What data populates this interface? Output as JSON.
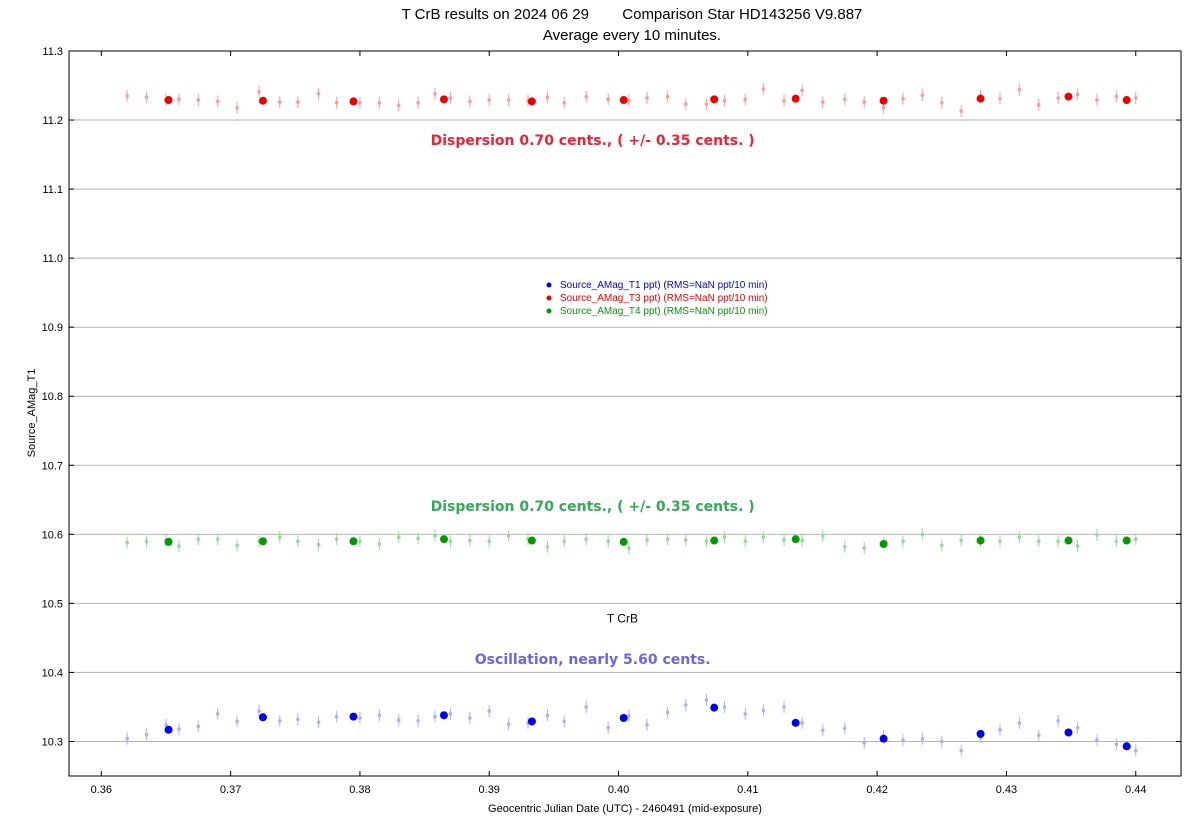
{
  "chart_data": {
    "type": "scatter",
    "title": "T CrB results on 2024 06 29        Comparison Star HD143256 V9.887",
    "subtitle": "Average every 10 minutes.",
    "xlabel": "Geocentric Julian Date (UTC) - 2460491 (mid-exposure)",
    "ylabel": "Source_AMag_T1",
    "xlim": [
      0.3575,
      0.4435
    ],
    "ylim": [
      10.25,
      11.3
    ],
    "xticks": [
      0.36,
      0.37,
      0.38,
      0.39,
      0.4,
      0.41,
      0.42,
      0.43,
      0.44
    ],
    "xtick_labels": [
      "0.36",
      "0.37",
      "0.38",
      "0.39",
      "0.40",
      "0.41",
      "0.42",
      "0.43",
      "0.44"
    ],
    "yticks": [
      10.3,
      10.4,
      10.5,
      10.6,
      10.7,
      10.8,
      10.9,
      11.0,
      11.1,
      11.2,
      11.3
    ],
    "ytick_labels": [
      "10.3",
      "10.4",
      "10.5",
      "10.6",
      "10.7",
      "10.8",
      "10.9",
      "11.0",
      "11.1",
      "11.2",
      "11.3"
    ],
    "grid": "horizontal",
    "legend_position": "center",
    "series": [
      {
        "name": "Source_AMag_T1 ppt) (RMS=NaN ppt/10 min)",
        "color": "#0000ee",
        "raw_color": "#aab0ff",
        "averages": {
          "x": [
            0.3652,
            0.3725,
            0.3795,
            0.3865,
            0.3933,
            0.4004,
            0.4074,
            0.4137,
            0.4205,
            0.428,
            0.4348,
            0.4393
          ],
          "y": [
            10.317,
            10.335,
            10.336,
            10.338,
            10.329,
            10.334,
            10.349,
            10.327,
            10.304,
            10.311,
            10.313,
            10.293
          ]
        },
        "raw": {
          "x": [
            0.362,
            0.3635,
            0.365,
            0.366,
            0.3675,
            0.369,
            0.3705,
            0.3722,
            0.3738,
            0.3752,
            0.3768,
            0.3782,
            0.38,
            0.3815,
            0.383,
            0.3845,
            0.3858,
            0.387,
            0.3885,
            0.39,
            0.3915,
            0.393,
            0.3945,
            0.3958,
            0.3975,
            0.3992,
            0.4008,
            0.4022,
            0.4038,
            0.4052,
            0.4068,
            0.4082,
            0.4098,
            0.4112,
            0.4128,
            0.4142,
            0.4158,
            0.4175,
            0.419,
            0.4205,
            0.422,
            0.4235,
            0.425,
            0.4265,
            0.428,
            0.4295,
            0.431,
            0.4325,
            0.434,
            0.4355,
            0.437,
            0.4385,
            0.44
          ],
          "y": [
            10.304,
            10.31,
            10.324,
            10.318,
            10.322,
            10.34,
            10.329,
            10.344,
            10.33,
            10.332,
            10.328,
            10.336,
            10.334,
            10.338,
            10.331,
            10.33,
            10.336,
            10.34,
            10.334,
            10.344,
            10.325,
            10.327,
            10.338,
            10.329,
            10.35,
            10.32,
            10.337,
            10.324,
            10.342,
            10.353,
            10.36,
            10.35,
            10.34,
            10.345,
            10.35,
            10.327,
            10.316,
            10.319,
            10.298,
            10.308,
            10.302,
            10.304,
            10.3,
            10.287,
            10.306,
            10.317,
            10.327,
            10.309,
            10.33,
            10.32,
            10.302,
            10.296,
            10.287
          ]
        }
      },
      {
        "name": "Source_AMag_T3 ppt) (RMS=NaN ppt/10 min)",
        "color": "#ee0000",
        "raw_color": "#ff9a9a",
        "averages": {
          "x": [
            0.3652,
            0.3725,
            0.3795,
            0.3865,
            0.3933,
            0.4004,
            0.4074,
            0.4137,
            0.4205,
            0.428,
            0.4348,
            0.4393
          ],
          "y": [
            11.229,
            11.228,
            11.227,
            11.23,
            11.227,
            11.229,
            11.23,
            11.231,
            11.228,
            11.231,
            11.234,
            11.229
          ]
        },
        "raw": {
          "x": [
            0.362,
            0.3635,
            0.365,
            0.366,
            0.3675,
            0.369,
            0.3705,
            0.3722,
            0.3738,
            0.3752,
            0.3768,
            0.3782,
            0.38,
            0.3815,
            0.383,
            0.3845,
            0.3858,
            0.387,
            0.3885,
            0.39,
            0.3915,
            0.393,
            0.3945,
            0.3958,
            0.3975,
            0.3992,
            0.4008,
            0.4022,
            0.4038,
            0.4052,
            0.4068,
            0.4082,
            0.4098,
            0.4112,
            0.4128,
            0.4142,
            0.4158,
            0.4175,
            0.419,
            0.4205,
            0.422,
            0.4235,
            0.425,
            0.4265,
            0.428,
            0.4295,
            0.431,
            0.4325,
            0.434,
            0.4355,
            0.437,
            0.4385,
            0.44
          ],
          "y": [
            11.235,
            11.233,
            11.229,
            11.23,
            11.229,
            11.227,
            11.218,
            11.241,
            11.226,
            11.226,
            11.238,
            11.225,
            11.225,
            11.225,
            11.221,
            11.225,
            11.238,
            11.232,
            11.227,
            11.229,
            11.229,
            11.228,
            11.233,
            11.225,
            11.234,
            11.23,
            11.228,
            11.232,
            11.234,
            11.223,
            11.223,
            11.228,
            11.23,
            11.245,
            11.228,
            11.243,
            11.226,
            11.23,
            11.226,
            11.218,
            11.231,
            11.236,
            11.225,
            11.213,
            11.235,
            11.231,
            11.244,
            11.222,
            11.232,
            11.237,
            11.229,
            11.234,
            11.232
          ]
        }
      },
      {
        "name": "Source_AMag_T4 ppt) (RMS=NaN ppt/10 min)",
        "color": "#009900",
        "raw_color": "#99d699",
        "averages": {
          "x": [
            0.3652,
            0.3725,
            0.3795,
            0.3865,
            0.3933,
            0.4004,
            0.4074,
            0.4137,
            0.4205,
            0.428,
            0.4348,
            0.4393
          ],
          "y": [
            10.589,
            10.59,
            10.59,
            10.593,
            10.591,
            10.589,
            10.591,
            10.593,
            10.586,
            10.591,
            10.591,
            10.591
          ]
        },
        "raw": {
          "x": [
            0.362,
            0.3635,
            0.365,
            0.366,
            0.3675,
            0.369,
            0.3705,
            0.3722,
            0.3738,
            0.3752,
            0.3768,
            0.3782,
            0.38,
            0.3815,
            0.383,
            0.3845,
            0.3858,
            0.387,
            0.3885,
            0.39,
            0.3915,
            0.393,
            0.3945,
            0.3958,
            0.3975,
            0.3992,
            0.4008,
            0.4022,
            0.4038,
            0.4052,
            0.4068,
            0.4082,
            0.4098,
            0.4112,
            0.4128,
            0.4142,
            0.4158,
            0.4175,
            0.419,
            0.4205,
            0.422,
            0.4235,
            0.425,
            0.4265,
            0.428,
            0.4295,
            0.431,
            0.4325,
            0.434,
            0.4355,
            0.437,
            0.4385,
            0.44
          ],
          "y": [
            10.588,
            10.59,
            10.591,
            10.583,
            10.593,
            10.593,
            10.584,
            10.59,
            10.596,
            10.59,
            10.585,
            10.593,
            10.59,
            10.586,
            10.596,
            10.594,
            10.598,
            10.59,
            10.591,
            10.59,
            10.598,
            10.593,
            10.582,
            10.59,
            10.593,
            10.59,
            10.58,
            10.592,
            10.593,
            10.592,
            10.59,
            10.596,
            10.59,
            10.596,
            10.592,
            10.591,
            10.598,
            10.582,
            10.58,
            10.588,
            10.59,
            10.6,
            10.584,
            10.591,
            10.59,
            10.59,
            10.596,
            10.59,
            10.59,
            10.583,
            10.599,
            10.59,
            10.593
          ]
        }
      }
    ],
    "annotations": [
      {
        "text": "Dispersion   0.70 cents.,  ( +/- 0.35 cents. )",
        "x": 0.398,
        "y": 11.164,
        "color": "#ee2233"
      },
      {
        "text": "Dispersion  0.70 cents., ( +/- 0.35 cents. )",
        "x": 0.398,
        "y": 10.634,
        "color": "#33aa55"
      },
      {
        "text": "T CrB",
        "x": 0.4003,
        "y": 10.472,
        "color": "#000000"
      },
      {
        "text": "Oscillation, nearly 5.60 cents.",
        "x": 0.398,
        "y": 10.412,
        "color": "#6666ee"
      }
    ]
  }
}
